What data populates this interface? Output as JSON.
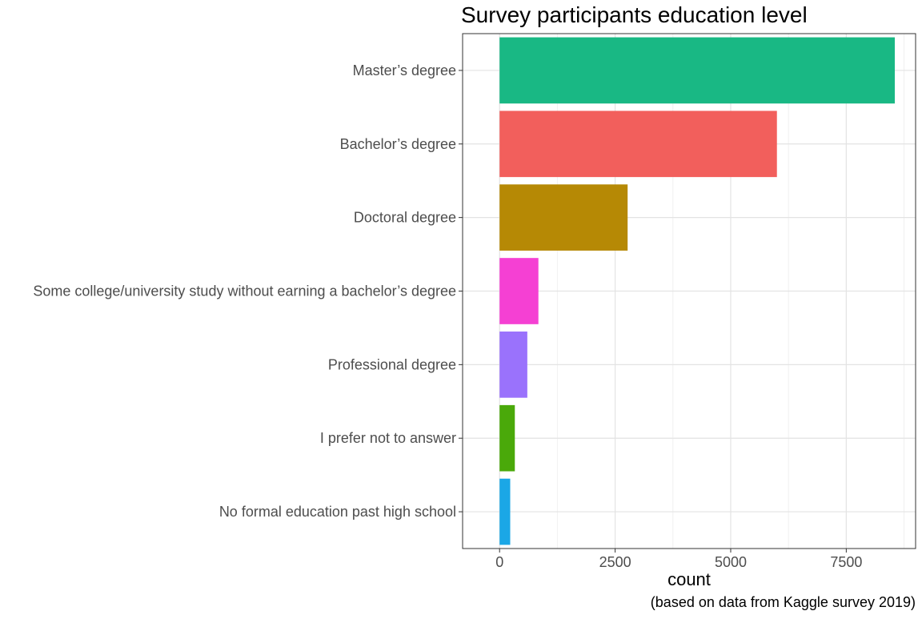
{
  "chart_data": {
    "type": "bar",
    "orientation": "horizontal",
    "title": "Survey participants education level",
    "xlabel": "count",
    "ylabel": "",
    "caption": "(based on data from Kaggle survey 2019)",
    "categories": [
      "Master’s degree",
      "Bachelor’s degree",
      "Doctoral degree",
      "Some college/university study without earning a bachelor’s degree",
      "Professional degree",
      "I prefer not to answer",
      "No formal education past high school"
    ],
    "values": [
      8550,
      6000,
      2770,
      840,
      600,
      330,
      230
    ],
    "colors": [
      "#19b884",
      "#f25f5c",
      "#b68905",
      "#f540d3",
      "#9a72fc",
      "#4aa90a",
      "#1ba7e6"
    ],
    "xlim": [
      -800,
      9000
    ],
    "xticks": [
      0,
      2500,
      5000,
      7500
    ],
    "xtick_labels": [
      "0",
      "2500",
      "5000",
      "7500"
    ],
    "grid": true,
    "legend": "none"
  }
}
